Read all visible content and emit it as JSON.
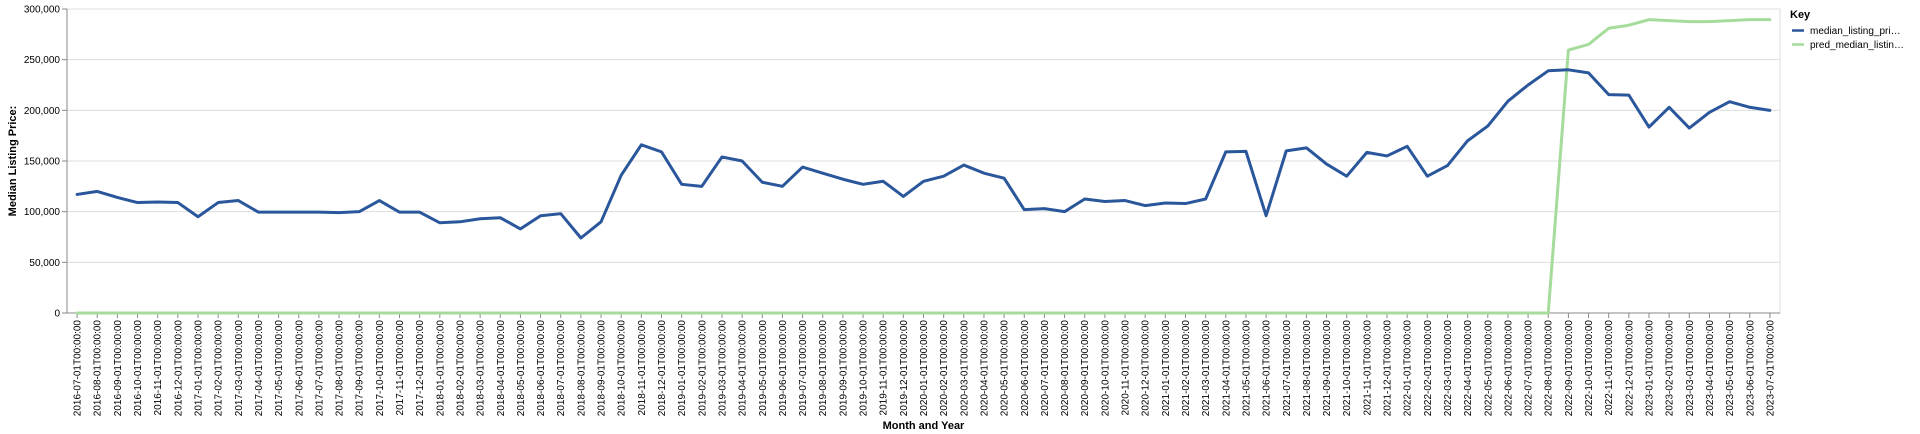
{
  "chart_data": {
    "type": "line",
    "xlabel": "Month and Year",
    "ylabel": "Median Listing Price:",
    "ylim": [
      0,
      300000
    ],
    "y_ticks": [
      "0",
      "50,000",
      "100,000",
      "150,000",
      "200,000",
      "250,000",
      "300,000"
    ],
    "grid": true,
    "legend": {
      "title": "Key",
      "placement": "top-right",
      "entries": [
        "median_listing_pri…",
        "pred_median_listin…"
      ]
    },
    "colors": {
      "median": "#2a569b",
      "pred": "#a6dc9b"
    },
    "x": [
      "2016-07-01T00:00:00",
      "2016-08-01T00:00:00",
      "2016-09-01T00:00:00",
      "2016-10-01T00:00:00",
      "2016-11-01T00:00:00",
      "2016-12-01T00:00:00",
      "2017-01-01T00:00:00",
      "2017-02-01T00:00:00",
      "2017-03-01T00:00:00",
      "2017-04-01T00:00:00",
      "2017-05-01T00:00:00",
      "2017-06-01T00:00:00",
      "2017-07-01T00:00:00",
      "2017-08-01T00:00:00",
      "2017-09-01T00:00:00",
      "2017-10-01T00:00:00",
      "2017-11-01T00:00:00",
      "2017-12-01T00:00:00",
      "2018-01-01T00:00:00",
      "2018-02-01T00:00:00",
      "2018-03-01T00:00:00",
      "2018-04-01T00:00:00",
      "2018-05-01T00:00:00",
      "2018-06-01T00:00:00",
      "2018-07-01T00:00:00",
      "2018-08-01T00:00:00",
      "2018-09-01T00:00:00",
      "2018-10-01T00:00:00",
      "2018-11-01T00:00:00",
      "2018-12-01T00:00:00",
      "2019-01-01T00:00:00",
      "2019-02-01T00:00:00",
      "2019-03-01T00:00:00",
      "2019-04-01T00:00:00",
      "2019-05-01T00:00:00",
      "2019-06-01T00:00:00",
      "2019-07-01T00:00:00",
      "2019-08-01T00:00:00",
      "2019-09-01T00:00:00",
      "2019-10-01T00:00:00",
      "2019-11-01T00:00:00",
      "2019-12-01T00:00:00",
      "2020-01-01T00:00:00",
      "2020-02-01T00:00:00",
      "2020-03-01T00:00:00",
      "2020-04-01T00:00:00",
      "2020-05-01T00:00:00",
      "2020-06-01T00:00:00",
      "2020-07-01T00:00:00",
      "2020-08-01T00:00:00",
      "2020-09-01T00:00:00",
      "2020-10-01T00:00:00",
      "2020-11-01T00:00:00",
      "2020-12-01T00:00:00",
      "2021-01-01T00:00:00",
      "2021-02-01T00:00:00",
      "2021-03-01T00:00:00",
      "2021-04-01T00:00:00",
      "2021-05-01T00:00:00",
      "2021-06-01T00:00:00",
      "2021-07-01T00:00:00",
      "2021-08-01T00:00:00",
      "2021-09-01T00:00:00",
      "2021-10-01T00:00:00",
      "2021-11-01T00:00:00",
      "2021-12-01T00:00:00",
      "2022-01-01T00:00:00",
      "2022-02-01T00:00:00",
      "2022-03-01T00:00:00",
      "2022-04-01T00:00:00",
      "2022-05-01T00:00:00",
      "2022-06-01T00:00:00",
      "2022-07-01T00:00:00",
      "2022-08-01T00:00:00",
      "2022-09-01T00:00:00",
      "2022-10-01T00:00:00",
      "2022-11-01T00:00:00",
      "2022-12-01T00:00:00",
      "2023-01-01T00:00:00",
      "2023-02-01T00:00:00",
      "2023-03-01T00:00:00",
      "2023-04-01T00:00:00",
      "2023-05-01T00:00:00",
      "2023-06-01T00:00:00",
      "2023-07-01T00:00:00"
    ],
    "series": [
      {
        "name": "median_listing_pri…",
        "values": [
          117000,
          120000,
          114000,
          109000,
          109500,
          109000,
          95000,
          109000,
          111000,
          99500,
          99500,
          99500,
          99500,
          99000,
          100000,
          111000,
          99500,
          99500,
          89000,
          90000,
          93000,
          94000,
          83000,
          96000,
          98000,
          74000,
          90000,
          136000,
          166000,
          159000,
          127000,
          125000,
          154000,
          150000,
          129000,
          125000,
          144000,
          138000,
          132000,
          127000,
          130000,
          115000,
          130000,
          135000,
          146000,
          138000,
          133000,
          102000,
          103000,
          100000,
          112500,
          110000,
          111000,
          106000,
          108500,
          108000,
          112500,
          159000,
          159500,
          96000,
          160000,
          163000,
          147000,
          135000,
          158500,
          155000,
          164500,
          135000,
          145500,
          170000,
          184500,
          209000,
          225000,
          239000,
          240000,
          237000,
          215500,
          215000,
          183500,
          203000,
          182500,
          198000,
          208500,
          203000,
          200000
        ]
      },
      {
        "name": "pred_median_listin…",
        "values": [
          0,
          0,
          0,
          0,
          0,
          0,
          0,
          0,
          0,
          0,
          0,
          0,
          0,
          0,
          0,
          0,
          0,
          0,
          0,
          0,
          0,
          0,
          0,
          0,
          0,
          0,
          0,
          0,
          0,
          0,
          0,
          0,
          0,
          0,
          0,
          0,
          0,
          0,
          0,
          0,
          0,
          0,
          0,
          0,
          0,
          0,
          0,
          0,
          0,
          0,
          0,
          0,
          0,
          0,
          0,
          0,
          0,
          0,
          0,
          0,
          0,
          0,
          0,
          0,
          0,
          0,
          0,
          0,
          0,
          0,
          0,
          0,
          0,
          0,
          259500,
          265000,
          281000,
          284000,
          289500,
          288500,
          287500,
          287500,
          288500,
          289500,
          289500
        ]
      }
    ]
  }
}
